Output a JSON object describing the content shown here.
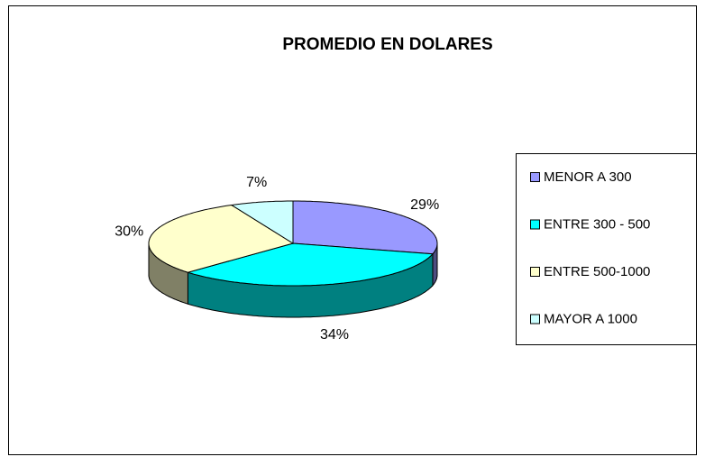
{
  "chart_data": {
    "type": "pie3d",
    "title": "PROMEDIO EN DOLARES",
    "categories": [
      "MENOR A 300",
      "ENTRE 300 - 500",
      "ENTRE 500-1000",
      "MAYOR A 1000"
    ],
    "values": [
      29,
      34,
      30,
      7
    ],
    "value_labels": [
      "29%",
      "34%",
      "30%",
      "7%"
    ],
    "colors": [
      "#9999ff",
      "#00ffff",
      "#ffffcc",
      "#ccffff"
    ],
    "legend": "right"
  }
}
